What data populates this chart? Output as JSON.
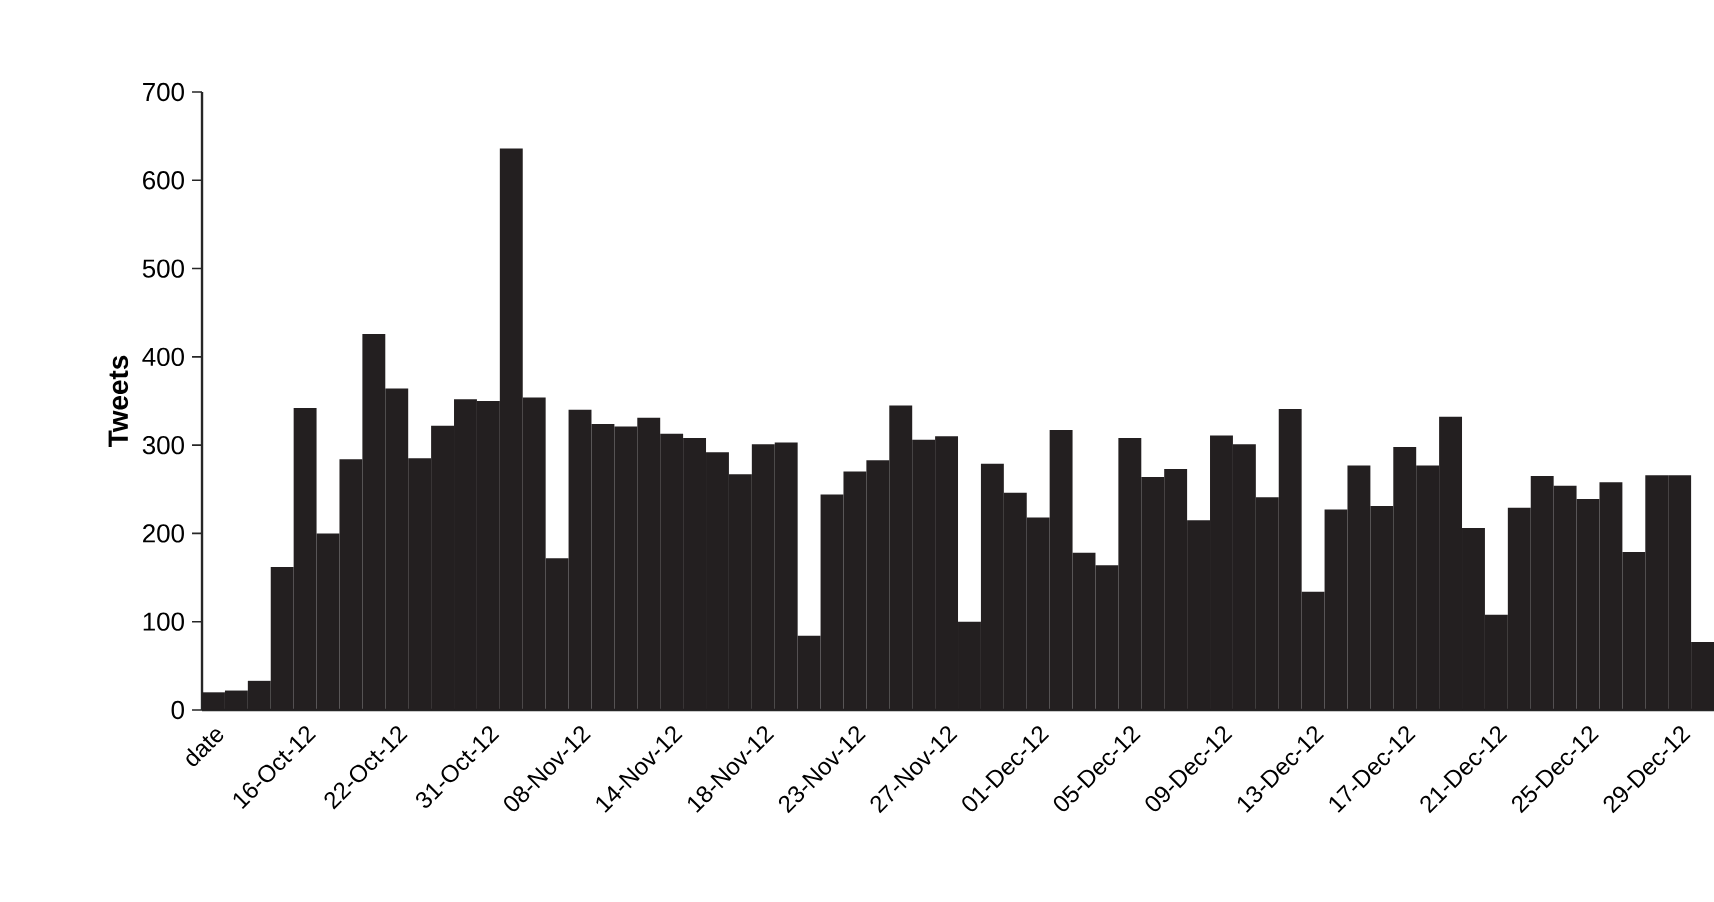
{
  "chart_data": {
    "type": "bar",
    "ylabel": "Tweets",
    "categories": [
      "date",
      null,
      null,
      null,
      "16-Oct-12",
      null,
      null,
      null,
      "22-Oct-12",
      null,
      null,
      null,
      "31-Oct-12",
      null,
      null,
      null,
      "08-Nov-12",
      null,
      null,
      null,
      "14-Nov-12",
      null,
      null,
      null,
      "18-Nov-12",
      null,
      null,
      null,
      "23-Nov-12",
      null,
      null,
      null,
      "27-Nov-12",
      null,
      null,
      null,
      "01-Dec-12",
      null,
      null,
      null,
      "05-Dec-12",
      null,
      null,
      null,
      "09-Dec-12",
      null,
      null,
      null,
      "13-Dec-12",
      null,
      null,
      null,
      "17-Dec-12",
      null,
      null,
      null,
      "21-Dec-12",
      null,
      null,
      null,
      "25-Dec-12",
      null,
      null,
      null,
      "29-Dec-12",
      null
    ],
    "values": [
      20,
      22,
      33,
      162,
      342,
      200,
      284,
      426,
      364,
      285,
      322,
      352,
      350,
      636,
      354,
      172,
      340,
      324,
      321,
      331,
      313,
      308,
      292,
      267,
      301,
      303,
      84,
      244,
      270,
      283,
      345,
      306,
      310,
      100,
      279,
      246,
      218,
      317,
      178,
      164,
      308,
      264,
      273,
      215,
      311,
      301,
      241,
      341,
      134,
      227,
      277,
      231,
      298,
      277,
      332,
      206,
      108,
      229,
      265,
      254,
      239,
      258,
      179,
      266,
      266,
      77
    ],
    "color": "#231f20",
    "ylim": [
      0,
      700
    ],
    "yticks": [
      0,
      100,
      200,
      300,
      400,
      500,
      600,
      700
    ]
  }
}
